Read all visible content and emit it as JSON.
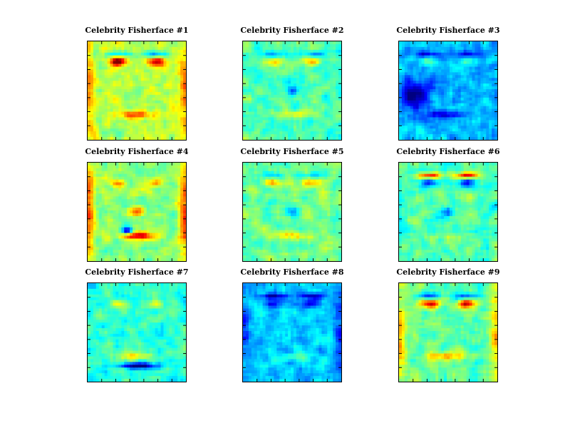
{
  "figure": {
    "colormap": "jet",
    "panels": [
      {
        "title": "Celebrity Fisherface #1",
        "seed": 11,
        "tone": 0.55,
        "style": "redEyes"
      },
      {
        "title": "Celebrity Fisherface #2",
        "seed": 23,
        "tone": 0.45,
        "style": "soft"
      },
      {
        "title": "Celebrity Fisherface #3",
        "seed": 37,
        "tone": 0.3,
        "style": "blueLeft"
      },
      {
        "title": "Celebrity Fisherface #4",
        "seed": 41,
        "tone": 0.5,
        "style": "redMouth"
      },
      {
        "title": "Celebrity Fisherface #5",
        "seed": 53,
        "tone": 0.48,
        "style": "soft"
      },
      {
        "title": "Celebrity Fisherface #6",
        "seed": 67,
        "tone": 0.45,
        "style": "brow"
      },
      {
        "title": "Celebrity Fisherface #7",
        "seed": 71,
        "tone": 0.42,
        "style": "blueMouth"
      },
      {
        "title": "Celebrity Fisherface #8",
        "seed": 83,
        "tone": 0.33,
        "style": "blueFace"
      },
      {
        "title": "Celebrity Fisherface #9",
        "seed": 97,
        "tone": 0.47,
        "style": "redEyes"
      }
    ]
  }
}
